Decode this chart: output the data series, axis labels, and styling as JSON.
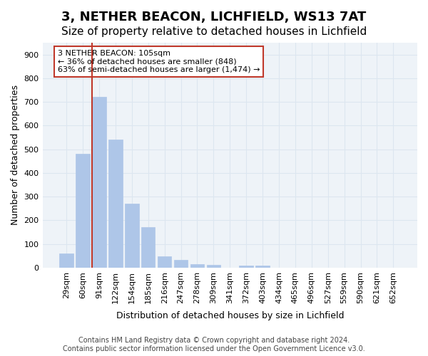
{
  "title1": "3, NETHER BEACON, LICHFIELD, WS13 7AT",
  "title2": "Size of property relative to detached houses in Lichfield",
  "xlabel": "Distribution of detached houses by size in Lichfield",
  "ylabel": "Number of detached properties",
  "categories": [
    "29sqm",
    "60sqm",
    "91sqm",
    "122sqm",
    "154sqm",
    "185sqm",
    "216sqm",
    "247sqm",
    "278sqm",
    "309sqm",
    "341sqm",
    "372sqm",
    "403sqm",
    "434sqm",
    "465sqm",
    "496sqm",
    "527sqm",
    "559sqm",
    "590sqm",
    "621sqm",
    "652sqm"
  ],
  "values": [
    60,
    480,
    720,
    540,
    270,
    170,
    47,
    32,
    16,
    12,
    0,
    8,
    8,
    0,
    0,
    0,
    0,
    0,
    0,
    0,
    0
  ],
  "bar_color": "#aec6e8",
  "bar_edge_color": "#aec6e8",
  "highlight_bar_index": 2,
  "highlight_color": "#c0392b",
  "annotation_text": "3 NETHER BEACON: 105sqm\n← 36% of detached houses are smaller (848)\n63% of semi-detached houses are larger (1,474) →",
  "annotation_box_color": "white",
  "annotation_box_edge_color": "#c0392b",
  "ylim": [
    0,
    950
  ],
  "yticks": [
    0,
    100,
    200,
    300,
    400,
    500,
    600,
    700,
    800,
    900
  ],
  "grid_color": "#dce6f0",
  "background_color": "#eef3f8",
  "footer_text": "Contains HM Land Registry data © Crown copyright and database right 2024.\nContains public sector information licensed under the Open Government Licence v3.0.",
  "title1_fontsize": 13,
  "title2_fontsize": 11,
  "xlabel_fontsize": 9,
  "ylabel_fontsize": 9,
  "tick_fontsize": 8,
  "annotation_fontsize": 8,
  "footer_fontsize": 7
}
